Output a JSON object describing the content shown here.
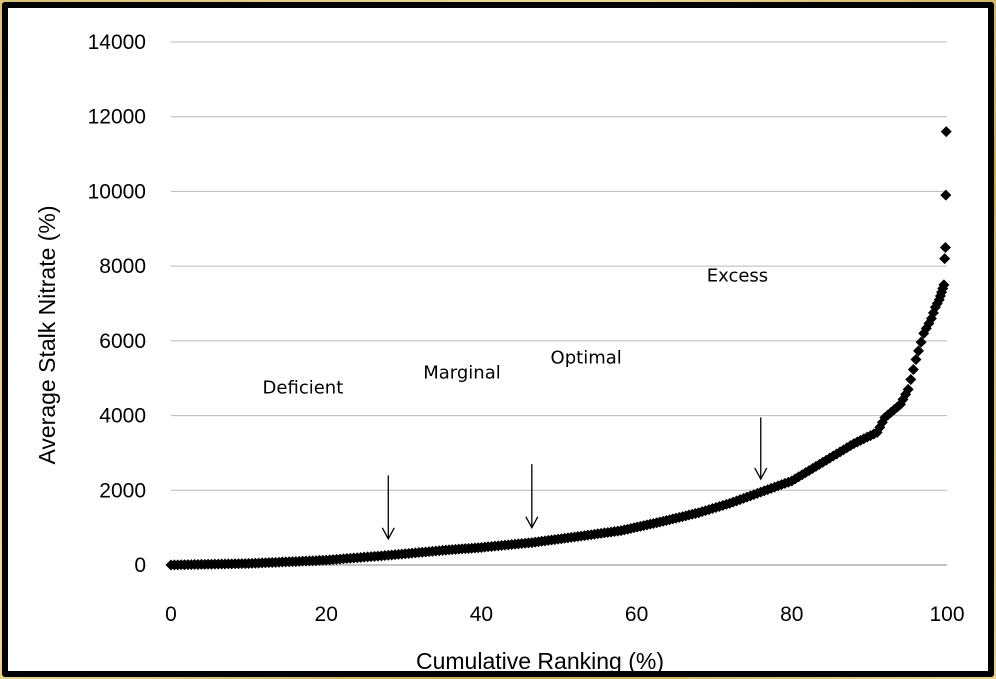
{
  "chart_data": {
    "type": "scatter",
    "title": "",
    "xlabel": "Cumulative Ranking (%)",
    "ylabel": "Average Stalk Nitrate (%)",
    "xlim": [
      0,
      100
    ],
    "ylim": [
      0,
      14000
    ],
    "xticks": [
      0,
      20,
      40,
      60,
      80,
      100
    ],
    "yticks": [
      0,
      2000,
      4000,
      6000,
      8000,
      10000,
      12000,
      14000
    ],
    "grid": "horizontal",
    "marker": "diamond",
    "marker_color": "#000000",
    "curve_anchors": {
      "x": [
        0,
        10,
        20,
        28,
        35,
        40,
        46.5,
        52,
        58,
        63,
        68,
        72,
        76,
        80,
        84,
        88,
        91,
        92,
        94,
        95,
        96,
        97,
        98,
        98.5,
        99,
        99.3,
        99.6
      ],
      "y": [
        0,
        40,
        130,
        260,
        390,
        470,
        600,
        750,
        920,
        1150,
        1400,
        1650,
        1950,
        2250,
        2750,
        3250,
        3550,
        3950,
        4300,
        4700,
        5500,
        6200,
        6600,
        6900,
        7100,
        7300,
        7500
      ]
    },
    "outliers": {
      "x": [
        99.7,
        99.8,
        99.85,
        99.9
      ],
      "y": [
        8200,
        8500,
        9900,
        11600
      ]
    },
    "annotations": [
      {
        "text": "Deficient",
        "x": 17,
        "y": 4750
      },
      {
        "text": "Marginal",
        "x": 37.5,
        "y": 5150
      },
      {
        "text": "Optimal",
        "x": 53.5,
        "y": 5550
      },
      {
        "text": "Excess",
        "x": 73,
        "y": 7750
      }
    ],
    "arrows": [
      {
        "x": 28,
        "y_from": 2400,
        "y_to": 700
      },
      {
        "x": 46.5,
        "y_from": 2700,
        "y_to": 1000
      },
      {
        "x": 76,
        "y_from": 3950,
        "y_to": 2300
      }
    ]
  }
}
